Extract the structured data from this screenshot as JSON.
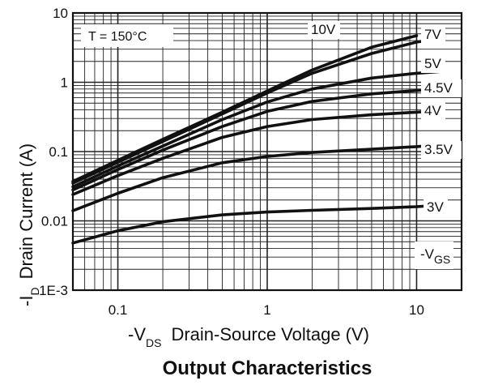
{
  "chart_data": {
    "type": "line",
    "title": "Output Characteristics",
    "xlabel": {
      "prefix": "-V",
      "sub": "DS",
      "text": "Drain-Source Voltage (V)"
    },
    "ylabel": {
      "prefix": "-I",
      "sub": "D",
      "text": "Drain Current (A)"
    },
    "x_scale": "log",
    "y_scale": "log",
    "xlim": [
      0.05,
      20
    ],
    "ylim": [
      0.001,
      10
    ],
    "x_ticks": [
      {
        "value": 0.1,
        "label": "0.1"
      },
      {
        "value": 1,
        "label": "1"
      },
      {
        "value": 10,
        "label": "10"
      }
    ],
    "y_ticks": [
      {
        "value": 10,
        "label": "10"
      },
      {
        "value": 1,
        "label": "1"
      },
      {
        "value": 0.1,
        "label": "0.1"
      },
      {
        "value": 0.01,
        "label": "0.01"
      },
      {
        "value": 0.001,
        "label": "1E-3"
      }
    ],
    "grid": true,
    "annotation": "T = 150°C",
    "legend_parameter": {
      "prefix": "-V",
      "sub": "GS"
    },
    "series": [
      {
        "name": "10V",
        "x": [
          0.05,
          0.1,
          0.2,
          0.5,
          1,
          2,
          5,
          10
        ],
        "y": [
          0.037,
          0.075,
          0.15,
          0.37,
          0.75,
          1.5,
          3.2,
          4.7
        ]
      },
      {
        "name": "7V",
        "x": [
          0.05,
          0.1,
          0.2,
          0.5,
          1,
          2,
          5,
          10,
          13
        ],
        "y": [
          0.035,
          0.07,
          0.14,
          0.35,
          0.7,
          1.35,
          2.6,
          3.8,
          4.1
        ]
      },
      {
        "name": "5V",
        "x": [
          0.05,
          0.1,
          0.2,
          0.5,
          1,
          2,
          5,
          10,
          14
        ],
        "y": [
          0.031,
          0.062,
          0.12,
          0.29,
          0.52,
          0.8,
          1.15,
          1.35,
          1.42
        ]
      },
      {
        "name": "4.5V",
        "x": [
          0.05,
          0.1,
          0.2,
          0.5,
          1,
          2,
          5,
          10,
          14
        ],
        "y": [
          0.028,
          0.055,
          0.105,
          0.23,
          0.38,
          0.53,
          0.68,
          0.76,
          0.8
        ]
      },
      {
        "name": "4V",
        "x": [
          0.05,
          0.1,
          0.2,
          0.5,
          1,
          2,
          5,
          10,
          14
        ],
        "y": [
          0.024,
          0.045,
          0.08,
          0.16,
          0.23,
          0.29,
          0.34,
          0.37,
          0.39
        ]
      },
      {
        "name": "3.5V",
        "x": [
          0.05,
          0.1,
          0.2,
          0.5,
          1,
          2,
          5,
          10,
          14
        ],
        "y": [
          0.014,
          0.025,
          0.042,
          0.069,
          0.085,
          0.097,
          0.108,
          0.118,
          0.125
        ]
      },
      {
        "name": "3V",
        "x": [
          0.05,
          0.1,
          0.2,
          0.5,
          1,
          2,
          5,
          10,
          14
        ],
        "y": [
          0.0048,
          0.0072,
          0.0097,
          0.0122,
          0.0134,
          0.0142,
          0.0151,
          0.016,
          0.0168
        ]
      }
    ]
  }
}
